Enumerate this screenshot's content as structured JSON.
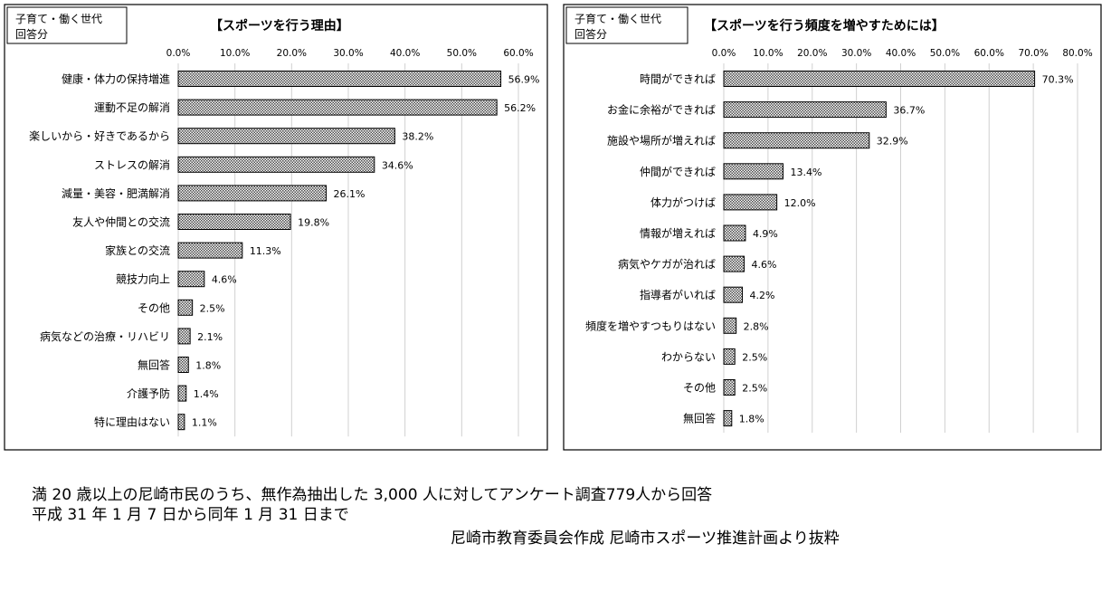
{
  "chart_data": [
    {
      "type": "bar",
      "orientation": "horizontal",
      "group_label": [
        "子育て・働く世代",
        "回答分"
      ],
      "title": "【スポーツを行う理由】",
      "xlim": [
        0,
        60
      ],
      "ticks": [
        0,
        10,
        20,
        30,
        40,
        50,
        60
      ],
      "tick_labels": [
        "0.0%",
        "10.0%",
        "20.0%",
        "30.0%",
        "40.0%",
        "50.0%",
        "60.0%"
      ],
      "categories": [
        "健康・体力の保持増進",
        "運動不足の解消",
        "楽しいから・好きであるから",
        "ストレスの解消",
        "減量・美容・肥満解消",
        "友人や仲間との交流",
        "家族との交流",
        "競技力向上",
        "その他",
        "病気などの治療・リハビリ",
        "無回答",
        "介護予防",
        "特に理由はない"
      ],
      "values": [
        56.9,
        56.2,
        38.2,
        34.6,
        26.1,
        19.8,
        11.3,
        4.6,
        2.5,
        2.1,
        1.8,
        1.4,
        1.1
      ],
      "value_labels": [
        "56.9%",
        "56.2%",
        "38.2%",
        "34.6%",
        "26.1%",
        "19.8%",
        "11.3%",
        "4.6%",
        "2.5%",
        "2.1%",
        "1.8%",
        "1.4%",
        "1.1%"
      ],
      "grid": true
    },
    {
      "type": "bar",
      "orientation": "horizontal",
      "group_label": [
        "子育て・働く世代",
        "回答分"
      ],
      "title": "【スポーツを行う頻度を増やすためには】",
      "xlim": [
        0,
        80
      ],
      "ticks": [
        0,
        10,
        20,
        30,
        40,
        50,
        60,
        70,
        80
      ],
      "tick_labels": [
        "0.0%",
        "10.0%",
        "20.0%",
        "30.0%",
        "40.0%",
        "50.0%",
        "60.0%",
        "70.0%",
        "80.0%"
      ],
      "categories": [
        "時間ができれば",
        "お金に余裕ができれば",
        "施設や場所が増えれば",
        "仲間ができれば",
        "体力がつけば",
        "情報が増えれば",
        "病気やケガが治れば",
        "指導者がいれば",
        "頻度を増やすつもりはない",
        "わからない",
        "その他",
        "無回答"
      ],
      "values": [
        70.3,
        36.7,
        32.9,
        13.4,
        12.0,
        4.9,
        4.6,
        4.2,
        2.8,
        2.5,
        2.5,
        1.8
      ],
      "value_labels": [
        "70.3%",
        "36.7%",
        "32.9%",
        "13.4%",
        "12.0%",
        "4.9%",
        "4.6%",
        "4.2%",
        "2.8%",
        "2.5%",
        "2.5%",
        "1.8%"
      ],
      "grid": true
    }
  ],
  "footnotes": {
    "line1": "満 20 歳以上の尼崎市民のうち、無作為抽出した 3,000 人に対してアンケート調査779人から回答",
    "line2": "平成 31 年 1 月 7 日から同年 1 月 31 日まで",
    "source": "尼崎市教育委員会作成  尼崎市スポーツ推進計画より抜粋"
  },
  "colors": {
    "bar_fill": "#9a9a9a",
    "bar_stroke": "#000000",
    "grid": "#d0d0d0",
    "frame": "#000000"
  }
}
